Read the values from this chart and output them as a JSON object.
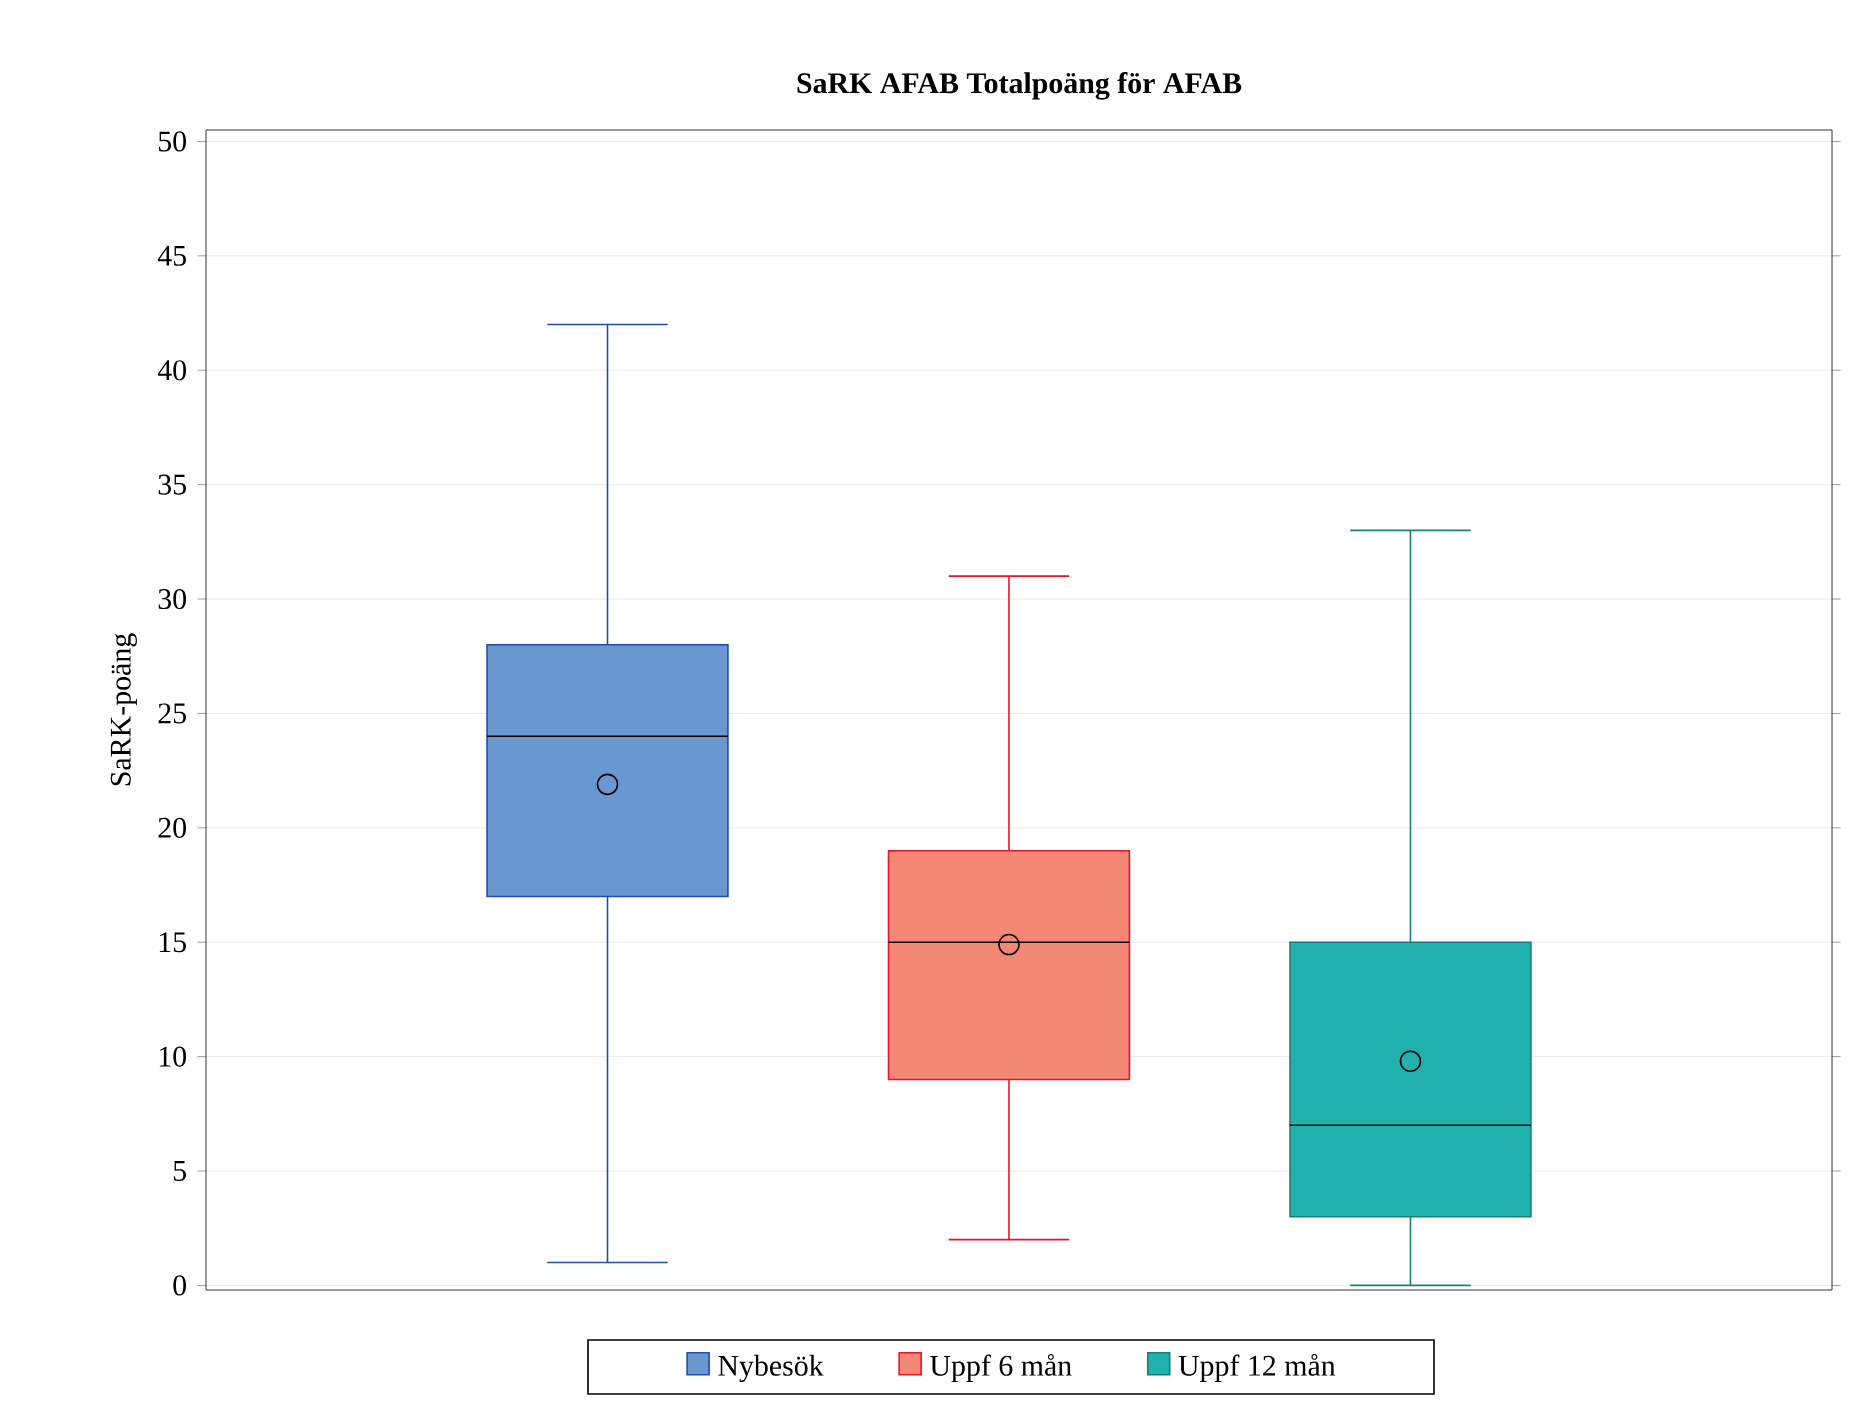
{
  "chart_data": {
    "type": "box",
    "title": "SaRK AFAB Totalpoäng för AFAB",
    "ylabel": "SaRK-poäng",
    "categories": [
      null,
      null,
      null
    ],
    "series": [
      {
        "name": "Nybesök",
        "color": "#6a97d0",
        "boxes": [
          {
            "low": 1,
            "q1": 17,
            "median": 24,
            "q3": 28,
            "high": 42,
            "mean": 21.9
          },
          null,
          null
        ]
      },
      {
        "name": "Uppf 6 mån",
        "color": "#f48874",
        "boxes": [
          null,
          {
            "low": 2,
            "q1": 9,
            "median": 15,
            "q3": 19,
            "high": 31,
            "mean": 14.9
          },
          null
        ]
      },
      {
        "name": "Uppf 12 mån",
        "color": "#20b1ad",
        "boxes": [
          null,
          null,
          {
            "low": 0,
            "q1": 3,
            "median": 7,
            "q3": 15,
            "high": 33,
            "mean": 9.8
          }
        ]
      }
    ],
    "ylim": [
      -0.2,
      50.5
    ],
    "yticks": [
      0,
      5,
      10,
      15,
      20,
      25,
      30,
      35,
      40,
      45,
      50
    ],
    "grid": "y",
    "legend": "bottom",
    "marker": "circle"
  }
}
